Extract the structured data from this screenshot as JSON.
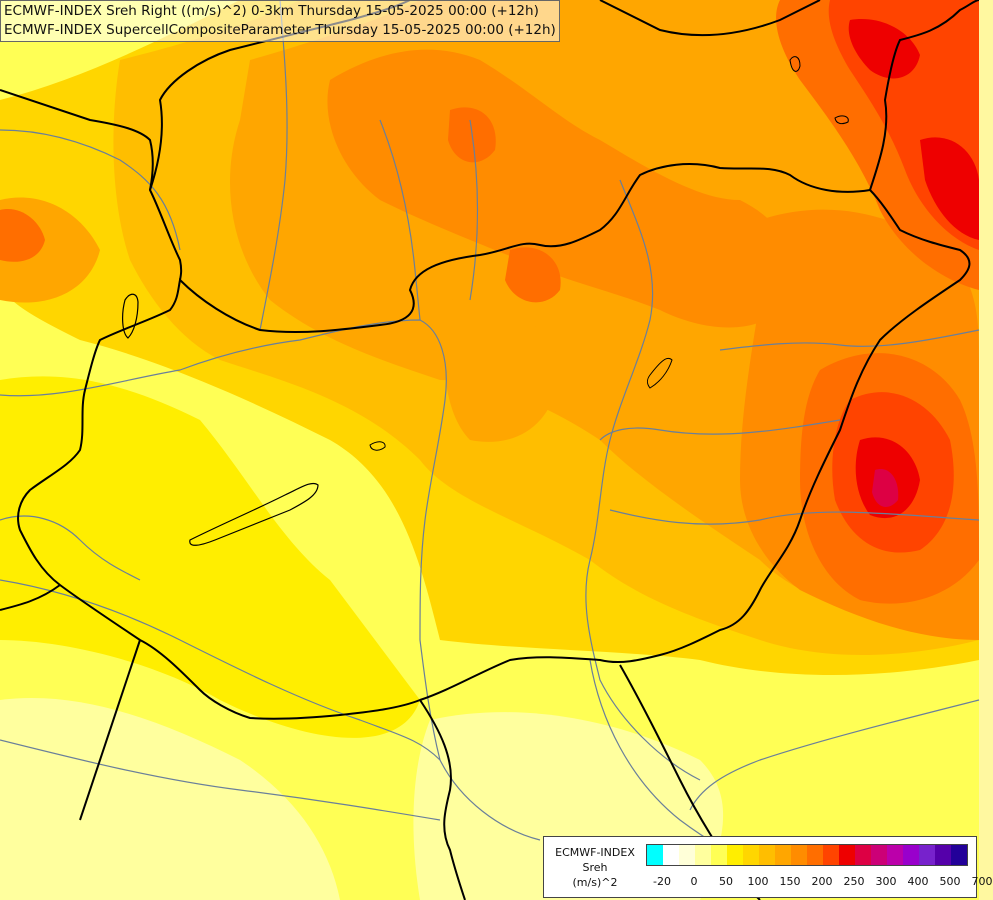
{
  "title_lines": [
    "ECMWF-INDEX Sreh Right ((m/s)^2) 0-3km Thursday 15-05-2025 00:00 (+12h)",
    "ECMWF-INDEX SupercellCompositeParameter Thursday 15-05-2025 00:00 (+12h)"
  ],
  "legend": {
    "title_lines": [
      "ECMWF-INDEX",
      "Sreh",
      "(m/s)^2"
    ],
    "colors": [
      "#00ffff",
      "#ffffff",
      "#ffffd8",
      "#ffff9e",
      "#ffff55",
      "#ffee00",
      "#ffd600",
      "#ffbe00",
      "#ffa600",
      "#ff8c00",
      "#ff6e00",
      "#ff4400",
      "#ee0000",
      "#dd0044",
      "#cc0077",
      "#bb00aa",
      "#9900cc",
      "#7722cc",
      "#5500aa",
      "#220099"
    ],
    "ticks": [
      "-20",
      "0",
      "50",
      "100",
      "150",
      "200",
      "250",
      "300",
      "400",
      "500",
      "700"
    ]
  },
  "field_colors": {
    "yellow_pale": "#ffff9e",
    "yellow": "#ffee00",
    "gold": "#ffd600",
    "orange_light": "#ffbe00",
    "orange": "#ffa600",
    "orange_dark": "#ff8c00",
    "red_orange": "#ff6e00",
    "red": "#ff4400",
    "crimson": "#ee0000",
    "magenta": "#dd0044",
    "border": "#000000",
    "river": "#6a7f9a"
  }
}
